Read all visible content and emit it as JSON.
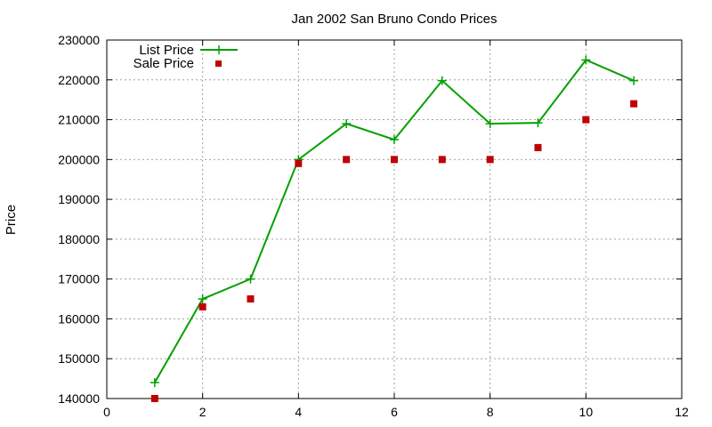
{
  "chart_data": {
    "type": "line",
    "title": "Jan 2002 San Bruno Condo Prices",
    "xlabel": "",
    "ylabel": "Price",
    "xlim": [
      0,
      12
    ],
    "ylim": [
      140000,
      230000
    ],
    "xticks": [
      0,
      2,
      4,
      6,
      8,
      10,
      12
    ],
    "yticks": [
      140000,
      150000,
      160000,
      170000,
      180000,
      190000,
      200000,
      210000,
      220000,
      230000
    ],
    "grid": true,
    "legend_position": "top-left",
    "series": [
      {
        "name": "List Price",
        "style": "linespoints",
        "marker": "plus",
        "color": "#00a000",
        "x": [
          1,
          2,
          3,
          4,
          5,
          6,
          7,
          8,
          9,
          10,
          11
        ],
        "values": [
          144000,
          165000,
          170000,
          200000,
          209000,
          205000,
          219800,
          209000,
          209200,
          225000,
          219800
        ]
      },
      {
        "name": "Sale Price",
        "style": "points",
        "marker": "square",
        "color": "#c00000",
        "x": [
          1,
          2,
          3,
          4,
          5,
          6,
          7,
          8,
          9,
          10,
          11
        ],
        "values": [
          140000,
          163000,
          165000,
          199000,
          200000,
          200000,
          200000,
          200000,
          203000,
          210000,
          214000
        ]
      }
    ]
  }
}
